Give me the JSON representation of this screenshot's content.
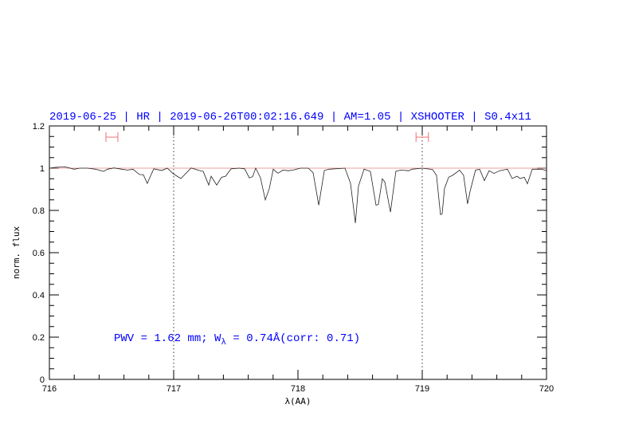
{
  "chart_data": {
    "type": "line",
    "title": "2019-06-25 | HR | 2019-06-26T00:02:16.649 | AM=1.05 | XSHOOTER | S0.4x11",
    "xlabel": "λ(AA)",
    "ylabel": "norm. flux",
    "xlim": [
      716,
      720
    ],
    "ylim": [
      0,
      1.2
    ],
    "x_ticks": [
      "716",
      "717",
      "718",
      "719",
      "720"
    ],
    "y_ticks": [
      "0",
      "0.2",
      "0.4",
      "0.6",
      "0.8",
      "1",
      "1.2"
    ],
    "grid": false,
    "continuum_level": 1.0,
    "vertical_markers": [
      717,
      719
    ],
    "ranges": [
      [
        716.455,
        716.551
      ],
      [
        718.95,
        719.05
      ]
    ],
    "range_marker_level": 1.147,
    "annotation": {
      "prefix": "PWV = 1.62 mm; W",
      "subscript": "λ",
      "suffix": " = 0.74Å(corr: 0.71)"
    },
    "colors": {
      "spectrum": "#222222",
      "continuum": "#e06060",
      "ranges": "#f07070",
      "text": "#0000ff"
    },
    "series": [
      {
        "points": [
          [
            716.0,
            1.0
          ],
          [
            716.051,
            1.004
          ],
          [
            716.128,
            1.006
          ],
          [
            716.199,
            0.995
          ],
          [
            716.244,
            1.0
          ],
          [
            716.308,
            1.0
          ],
          [
            716.372,
            0.995
          ],
          [
            716.436,
            0.985
          ],
          [
            716.468,
            0.995
          ],
          [
            716.519,
            1.001
          ],
          [
            716.583,
            0.995
          ],
          [
            716.628,
            0.991
          ],
          [
            716.673,
            0.995
          ],
          [
            716.724,
            0.97
          ],
          [
            716.756,
            0.969
          ],
          [
            716.788,
            0.928
          ],
          [
            716.808,
            0.955
          ],
          [
            716.84,
            0.997
          ],
          [
            716.904,
            0.989
          ],
          [
            716.949,
            1.0
          ],
          [
            717.0,
            0.972
          ],
          [
            717.058,
            0.951
          ],
          [
            717.141,
            1.001
          ],
          [
            717.205,
            0.989
          ],
          [
            717.237,
            0.985
          ],
          [
            717.282,
            0.92
          ],
          [
            717.301,
            0.962
          ],
          [
            717.346,
            0.92
          ],
          [
            717.385,
            0.957
          ],
          [
            717.417,
            0.962
          ],
          [
            717.462,
            0.997
          ],
          [
            717.526,
            1.0
          ],
          [
            717.571,
            0.997
          ],
          [
            717.609,
            0.954
          ],
          [
            717.635,
            0.96
          ],
          [
            717.66,
            1.0
          ],
          [
            717.699,
            0.954
          ],
          [
            717.737,
            0.85
          ],
          [
            717.769,
            0.903
          ],
          [
            717.801,
            0.995
          ],
          [
            717.84,
            0.976
          ],
          [
            717.878,
            0.991
          ],
          [
            717.923,
            0.988
          ],
          [
            717.962,
            0.991
          ],
          [
            718.019,
            1.0
          ],
          [
            718.083,
            1.0
          ],
          [
            718.122,
            0.979
          ],
          [
            718.167,
            0.825
          ],
          [
            718.212,
            0.989
          ],
          [
            718.25,
            0.995
          ],
          [
            718.378,
            1.0
          ],
          [
            718.423,
            0.928
          ],
          [
            718.462,
            0.74
          ],
          [
            718.487,
            0.916
          ],
          [
            718.532,
            0.995
          ],
          [
            718.583,
            0.985
          ],
          [
            718.628,
            0.825
          ],
          [
            718.647,
            0.828
          ],
          [
            718.679,
            0.95
          ],
          [
            718.699,
            0.935
          ],
          [
            718.744,
            0.792
          ],
          [
            718.788,
            0.985
          ],
          [
            718.827,
            0.991
          ],
          [
            718.891,
            0.988
          ],
          [
            718.917,
            0.995
          ],
          [
            719.0,
            1.0
          ],
          [
            719.083,
            0.994
          ],
          [
            719.115,
            0.966
          ],
          [
            719.147,
            0.78
          ],
          [
            719.16,
            0.784
          ],
          [
            719.179,
            0.903
          ],
          [
            719.212,
            0.957
          ],
          [
            719.244,
            0.966
          ],
          [
            719.301,
            0.991
          ],
          [
            719.333,
            0.966
          ],
          [
            719.365,
            0.831
          ],
          [
            719.385,
            0.891
          ],
          [
            719.429,
            0.991
          ],
          [
            719.462,
            0.995
          ],
          [
            719.5,
            0.941
          ],
          [
            719.538,
            0.988
          ],
          [
            719.577,
            0.975
          ],
          [
            719.622,
            0.988
          ],
          [
            719.686,
            0.995
          ],
          [
            719.724,
            0.951
          ],
          [
            719.763,
            0.962
          ],
          [
            719.788,
            0.951
          ],
          [
            719.821,
            0.957
          ],
          [
            719.846,
            0.926
          ],
          [
            719.885,
            0.995
          ],
          [
            719.962,
            0.995
          ],
          [
            720.0,
            0.988
          ]
        ]
      }
    ]
  }
}
